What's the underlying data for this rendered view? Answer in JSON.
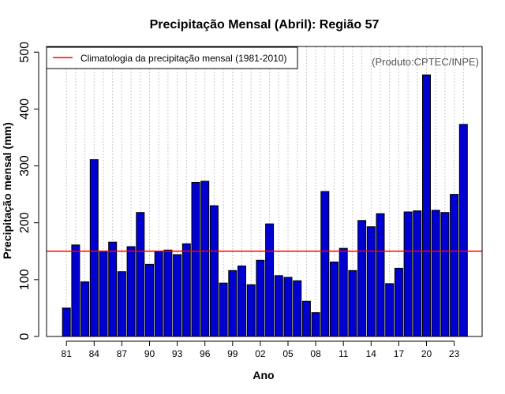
{
  "chart_data": {
    "type": "bar",
    "title": "Precipitação Mensal (Abril): Região 57",
    "xlabel": "Ano",
    "ylabel": "Precipitação mensal (mm)",
    "ylim": [
      0,
      510
    ],
    "yticks": [
      0,
      100,
      200,
      300,
      400,
      500
    ],
    "xticks": [
      "81",
      "84",
      "87",
      "90",
      "93",
      "96",
      "99",
      "02",
      "05",
      "08",
      "11",
      "14",
      "17",
      "20",
      "23"
    ],
    "grid": "vertical dotted",
    "years": [
      1981,
      1982,
      1983,
      1984,
      1985,
      1986,
      1987,
      1988,
      1989,
      1990,
      1991,
      1992,
      1993,
      1994,
      1995,
      1996,
      1997,
      1998,
      1999,
      2000,
      2001,
      2002,
      2003,
      2004,
      2005,
      2006,
      2007,
      2008,
      2009,
      2010,
      2011,
      2012,
      2013,
      2014,
      2015,
      2016,
      2017,
      2018,
      2019,
      2020,
      2021,
      2022,
      2023,
      2024
    ],
    "values": [
      50,
      161,
      96,
      311,
      150,
      166,
      114,
      158,
      218,
      127,
      149,
      152,
      144,
      163,
      271,
      273,
      230,
      94,
      116,
      124,
      91,
      134,
      198,
      107,
      104,
      98,
      62,
      42,
      255,
      131,
      155,
      116,
      204,
      193,
      216,
      93,
      120,
      219,
      221,
      460,
      222,
      218,
      250,
      373
    ],
    "bar_color": "#0000d0",
    "climatology": {
      "label": "Climatologia da precipitação mensal (1981-2010)",
      "value": 150,
      "color": "#ff0000"
    },
    "legend_position": "top-left",
    "credit": "(Produto:CPTEC/INPE)"
  }
}
